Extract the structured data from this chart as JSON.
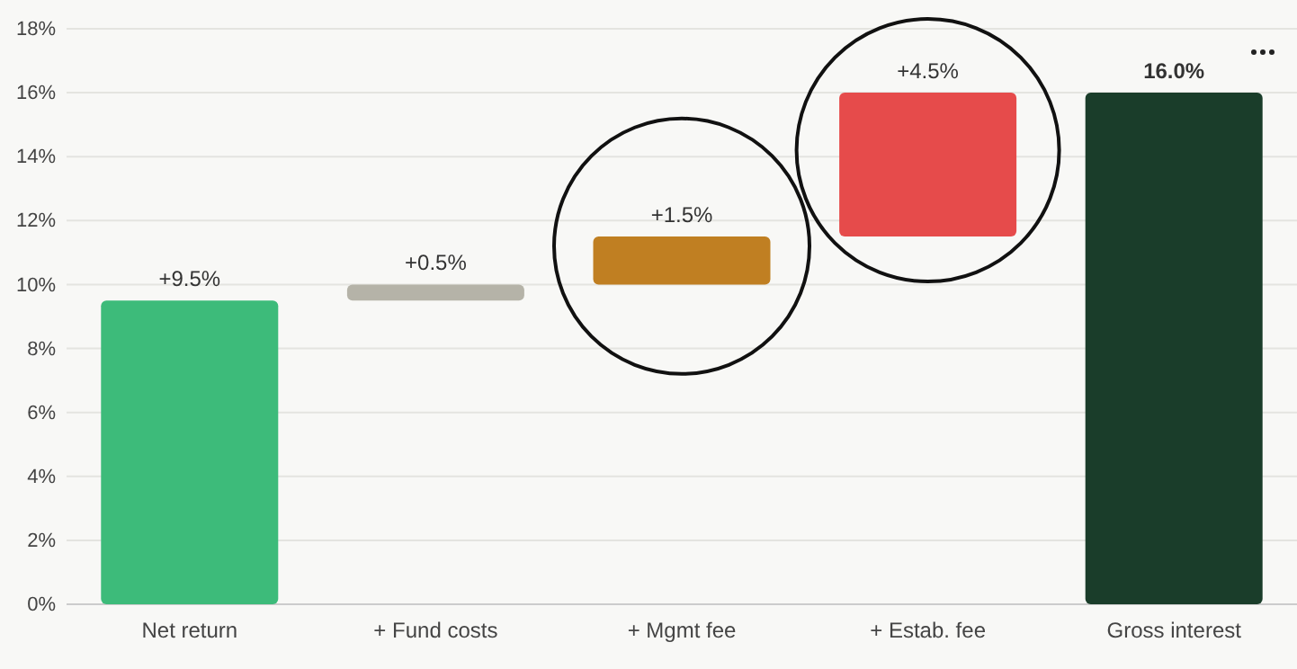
{
  "chart_data": {
    "type": "bar",
    "categories": [
      "Net return",
      "+ Fund costs",
      "+ Mgmt fee",
      "+ Estab. fee",
      "Gross interest"
    ],
    "values": [
      9.5,
      0.5,
      1.5,
      4.5,
      16.0
    ],
    "base": [
      0,
      9.5,
      10,
      11.5,
      0
    ],
    "colors": [
      "#3dbb7a",
      "#b5b3a8",
      "#c07f22",
      "#e64b4b",
      "#1a3d2a"
    ],
    "value_labels": [
      "+9.5%",
      "+0.5%",
      "+1.5%",
      "+4.5%",
      "16.0%"
    ],
    "ylim": [
      0,
      18
    ],
    "yticks": [
      {
        "value": 0,
        "label": "0%"
      },
      {
        "value": 2,
        "label": "2%"
      },
      {
        "value": 4,
        "label": "4%"
      },
      {
        "value": 6,
        "label": "6%"
      },
      {
        "value": 8,
        "label": "8%"
      },
      {
        "value": 10,
        "label": "10%"
      },
      {
        "value": 12,
        "label": "12%"
      },
      {
        "value": 14,
        "label": "14%"
      },
      {
        "value": 16,
        "label": "16%"
      },
      {
        "value": 18,
        "label": "18%"
      }
    ],
    "grid": "y"
  }
}
